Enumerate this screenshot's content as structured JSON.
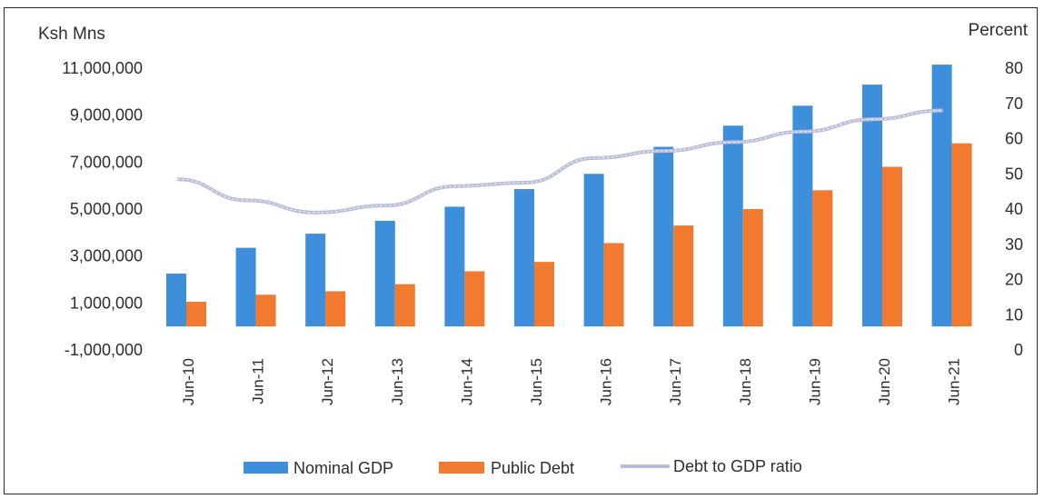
{
  "chart_data": {
    "type": "bar",
    "ylabel_left": "Ksh Mns",
    "ylabel_right": "Percent",
    "categories": [
      "Jun-10",
      "Jun-11",
      "Jun-12",
      "Jun-13",
      "Jun-14",
      "Jun-15",
      "Jun-16",
      "Jun-17",
      "Jun-18",
      "Jun-19",
      "Jun-20",
      "Jun-21"
    ],
    "y_left_ticks": [
      "11,000,000",
      "9,000,000",
      "7,000,000",
      "5,000,000",
      "3,000,000",
      "1,000,000",
      "-1,000,000"
    ],
    "y_left_range": [
      -1000000,
      11000000
    ],
    "y_right_ticks": [
      "80",
      "70",
      "60",
      "50",
      "40",
      "30",
      "20",
      "10",
      "0"
    ],
    "y_right_range": [
      0,
      80
    ],
    "series": [
      {
        "name": "Nominal GDP",
        "type": "bar",
        "axis": "left",
        "color": "#3d8fdc",
        "values": [
          2250000,
          3350000,
          3950000,
          4500000,
          5100000,
          5850000,
          6500000,
          7650000,
          8550000,
          9400000,
          10300000,
          11150000
        ]
      },
      {
        "name": "Public Debt",
        "type": "bar",
        "axis": "left",
        "color": "#f17a2e",
        "values": [
          1050000,
          1350000,
          1500000,
          1800000,
          2350000,
          2750000,
          3550000,
          4300000,
          5000000,
          5800000,
          6800000,
          7800000
        ]
      },
      {
        "name": "Debt to GDP ratio",
        "type": "line",
        "axis": "right",
        "color": "#b9bcd8",
        "values": [
          48.5,
          42.5,
          39,
          41,
          46.5,
          47.5,
          54.5,
          56.5,
          59,
          62,
          65.5,
          68
        ]
      }
    ],
    "legend": "bottom",
    "grid": false
  }
}
